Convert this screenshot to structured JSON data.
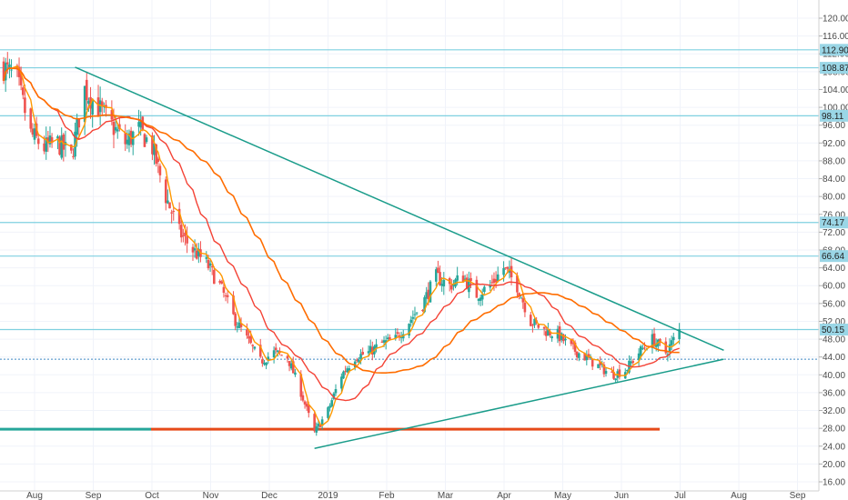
{
  "chart_data": {
    "type": "candlestick",
    "grid": true,
    "x_ticks": [
      "Aug",
      "Sep",
      "Oct",
      "Nov",
      "Dec",
      "2019",
      "Feb",
      "Mar",
      "Apr",
      "May",
      "Jun",
      "Jul",
      "Aug",
      "Sep"
    ],
    "y_ticks": [
      120,
      116,
      112,
      108,
      104,
      100,
      96,
      92,
      88,
      84,
      80,
      76,
      72,
      68,
      64,
      60,
      56,
      52,
      48,
      44,
      40,
      36,
      32,
      28,
      24,
      20,
      16
    ],
    "ylim": [
      14,
      122
    ],
    "price_levels": [
      {
        "label": "112.90",
        "value": 112.9
      },
      {
        "label": "108.87",
        "value": 108.87
      },
      {
        "label": "98.11",
        "value": 98.11
      },
      {
        "label": "74.17",
        "value": 74.17
      },
      {
        "label": "66.64",
        "value": 66.64
      },
      {
        "label": "50.15",
        "value": 50.15
      }
    ],
    "dotted_level": 43.5,
    "support_level": 27.8,
    "closes_weekly": [
      {
        "d": "2018-07-16",
        "c": 109
      },
      {
        "d": "2018-07-23",
        "c": 106
      },
      {
        "d": "2018-07-30",
        "c": 94
      },
      {
        "d": "2018-08-06",
        "c": 91
      },
      {
        "d": "2018-08-13",
        "c": 92
      },
      {
        "d": "2018-08-20",
        "c": 89
      },
      {
        "d": "2018-08-27",
        "c": 104
      },
      {
        "d": "2018-09-03",
        "c": 100
      },
      {
        "d": "2018-09-10",
        "c": 96
      },
      {
        "d": "2018-09-17",
        "c": 92
      },
      {
        "d": "2018-09-24",
        "c": 95
      },
      {
        "d": "2018-10-01",
        "c": 91
      },
      {
        "d": "2018-10-08",
        "c": 80
      },
      {
        "d": "2018-10-15",
        "c": 72
      },
      {
        "d": "2018-10-22",
        "c": 68
      },
      {
        "d": "2018-10-29",
        "c": 65
      },
      {
        "d": "2018-11-05",
        "c": 60
      },
      {
        "d": "2018-11-12",
        "c": 53
      },
      {
        "d": "2018-11-19",
        "c": 48
      },
      {
        "d": "2018-11-26",
        "c": 43
      },
      {
        "d": "2018-12-03",
        "c": 45
      },
      {
        "d": "2018-12-10",
        "c": 44
      },
      {
        "d": "2018-12-17",
        "c": 36
      },
      {
        "d": "2018-12-24",
        "c": 27
      },
      {
        "d": "2018-12-31",
        "c": 32
      },
      {
        "d": "2019-01-07",
        "c": 40
      },
      {
        "d": "2019-01-14",
        "c": 44
      },
      {
        "d": "2019-01-21",
        "c": 45
      },
      {
        "d": "2019-01-28",
        "c": 47
      },
      {
        "d": "2019-02-04",
        "c": 48
      },
      {
        "d": "2019-02-11",
        "c": 52
      },
      {
        "d": "2019-02-18",
        "c": 56
      },
      {
        "d": "2019-02-25",
        "c": 62
      },
      {
        "d": "2019-03-04",
        "c": 60
      },
      {
        "d": "2019-03-11",
        "c": 62
      },
      {
        "d": "2019-03-18",
        "c": 58
      },
      {
        "d": "2019-03-25",
        "c": 60
      },
      {
        "d": "2019-04-01",
        "c": 64
      },
      {
        "d": "2019-04-08",
        "c": 60
      },
      {
        "d": "2019-04-15",
        "c": 52
      },
      {
        "d": "2019-04-22",
        "c": 50
      },
      {
        "d": "2019-04-29",
        "c": 49
      },
      {
        "d": "2019-05-06",
        "c": 46
      },
      {
        "d": "2019-05-13",
        "c": 44
      },
      {
        "d": "2019-05-20",
        "c": 42
      },
      {
        "d": "2019-05-27",
        "c": 40
      },
      {
        "d": "2019-06-03",
        "c": 41
      },
      {
        "d": "2019-06-10",
        "c": 45
      },
      {
        "d": "2019-06-17",
        "c": 48
      },
      {
        "d": "2019-06-24",
        "c": 45
      },
      {
        "d": "2019-07-01",
        "c": 50
      }
    ],
    "trend_lines": [
      {
        "name": "upper",
        "from": {
          "d": "2018-08-22",
          "v": 109
        },
        "to": {
          "d": "2019-07-24",
          "v": 45.5
        }
      },
      {
        "name": "lower",
        "from": {
          "d": "2018-12-24",
          "v": 23.5
        },
        "to": {
          "d": "2019-07-24",
          "v": 43.5
        }
      }
    ],
    "colors": {
      "up": "#26a69a",
      "down": "#ef5350",
      "ma_fast": "#ff9800",
      "ma_mid": "#f44336",
      "ma_slow": "#ff6d00",
      "trend": "#1a9c8a",
      "level": "#7fd0e0",
      "level_label_bg": "#9ad6e6",
      "support": "#e64a19",
      "support_left": "#26a69a"
    }
  }
}
